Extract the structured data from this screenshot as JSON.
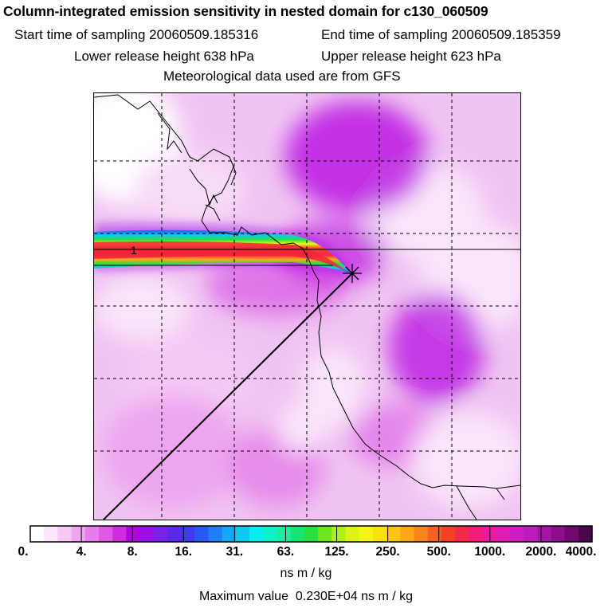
{
  "header": {
    "title": "Column-integrated emission sensitivity in nested domain for c130_060509",
    "start_label": "Start time of sampling 20060509.185316",
    "end_label": "End time of sampling 20060509.185359",
    "lower_label": "Lower release height  638 hPa",
    "upper_label": "Upper release height  623 hPa",
    "met_label": "Meteorological data used are from GFS"
  },
  "map": {
    "plume_label": "1",
    "release_marker": "star"
  },
  "colorbar": {
    "tick_labels": [
      "0.",
      "4.",
      "8.",
      "16.",
      "31.",
      "63.",
      "125.",
      "250.",
      "500.",
      "1000.",
      "2000.",
      "4000."
    ],
    "colors": [
      "#ffffff",
      "#fbe6fb",
      "#f4c9f4",
      "#eda6ef",
      "#e57ee9",
      "#dd5ae6",
      "#d02ce0",
      "#b400e0",
      "#9a10e6",
      "#7a22e8",
      "#5a2ae8",
      "#3d3cf0",
      "#2a58f5",
      "#1e7ff8",
      "#18a6f6",
      "#10c8f2",
      "#08eef0",
      "#12f0c8",
      "#1aeea0",
      "#18e472",
      "#28e040",
      "#70e41e",
      "#aef01a",
      "#dcf218",
      "#f4f41a",
      "#fbe010",
      "#fcc412",
      "#fca818",
      "#f8861c",
      "#f66222",
      "#f44228",
      "#f22a48",
      "#f01e7a",
      "#ec1a9e",
      "#e01cb4",
      "#d01cc2",
      "#bc1cbc",
      "#a616a6",
      "#8c108c",
      "#6e0a6e",
      "#4c064c"
    ]
  },
  "footer": {
    "unit": "ns m / kg",
    "max_value": "Maximum value  0.230E+04 ns m / kg"
  }
}
